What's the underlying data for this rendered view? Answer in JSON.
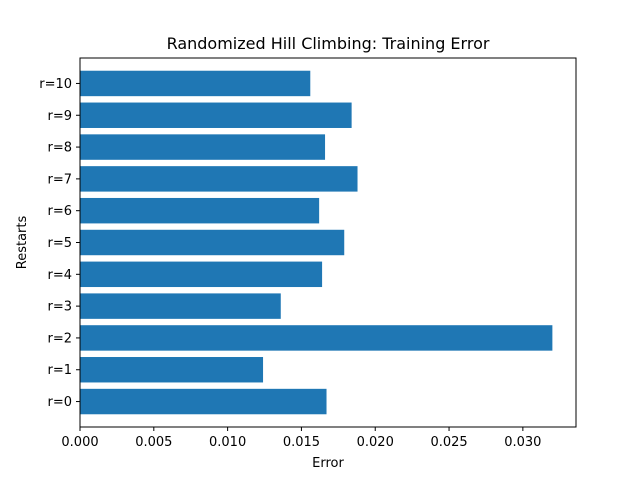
{
  "chart_data": {
    "type": "bar",
    "orientation": "horizontal",
    "title": "Randomized Hill Climbing: Training Error",
    "xlabel": "Error",
    "ylabel": "Restarts",
    "categories": [
      "r=0",
      "r=1",
      "r=2",
      "r=3",
      "r=4",
      "r=5",
      "r=6",
      "r=7",
      "r=8",
      "r=9",
      "r=10"
    ],
    "values": [
      0.0167,
      0.0124,
      0.032,
      0.0136,
      0.0164,
      0.0179,
      0.0162,
      0.0188,
      0.0166,
      0.0184,
      0.0156
    ],
    "xlim": [
      0,
      0.0336
    ],
    "xticks": [
      0.0,
      0.005,
      0.01,
      0.015,
      0.02,
      0.025,
      0.03
    ],
    "xtick_labels": [
      "0.000",
      "0.005",
      "0.010",
      "0.015",
      "0.020",
      "0.025",
      "0.030"
    ],
    "bar_color": "#1f77b4",
    "grid": false,
    "legend": "none"
  }
}
